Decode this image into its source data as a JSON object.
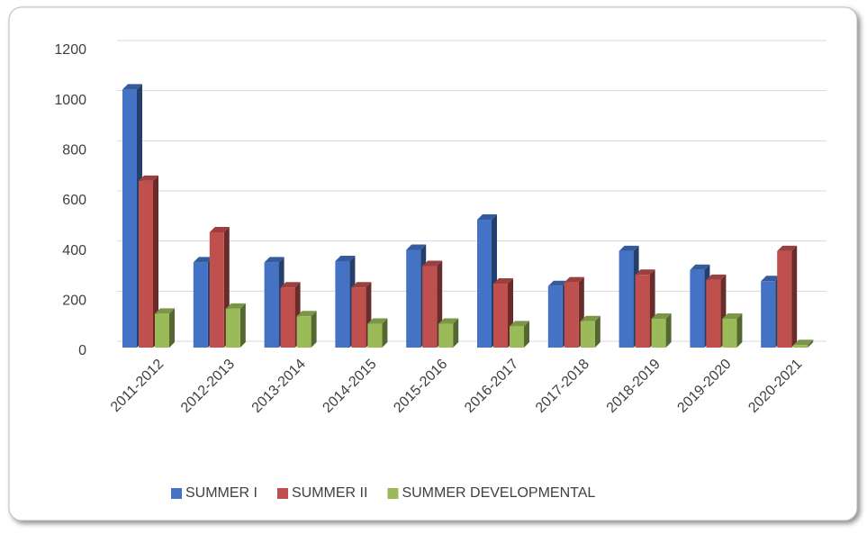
{
  "chart_data": {
    "type": "bar3d",
    "categories": [
      "2011-2012",
      "2012-2013",
      "2013-2014",
      "2014-2015",
      "2015-2016",
      "2016-2017",
      "2017-2018",
      "2018-2019",
      "2019-2020",
      "2020-2021"
    ],
    "series": [
      {
        "name": "SUMMER I",
        "color": "#4472c4",
        "values": [
          1030,
          340,
          340,
          345,
          390,
          510,
          245,
          385,
          310,
          265
        ]
      },
      {
        "name": "SUMMER II",
        "color": "#c0504d",
        "values": [
          665,
          460,
          240,
          240,
          325,
          255,
          260,
          290,
          270,
          385
        ]
      },
      {
        "name": "SUMMER DEVELOPMENTAL",
        "color": "#9bbb59",
        "values": [
          135,
          155,
          125,
          95,
          95,
          85,
          105,
          115,
          115,
          10
        ]
      }
    ],
    "ylim": [
      0,
      1200
    ],
    "yticks": [
      0,
      200,
      400,
      600,
      800,
      1000,
      1200
    ],
    "grid": true,
    "legend": "bottom"
  }
}
